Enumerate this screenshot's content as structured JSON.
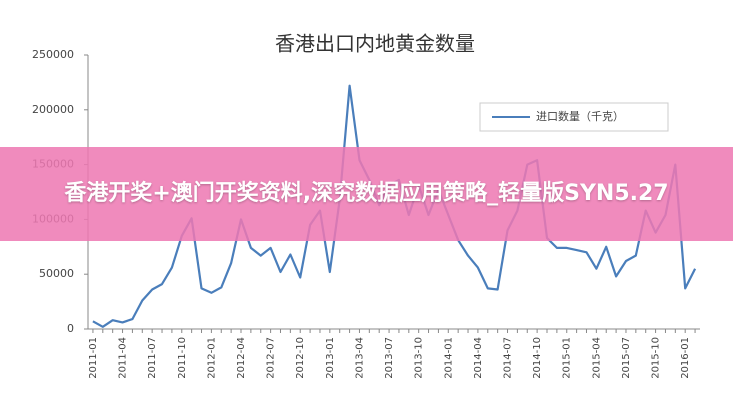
{
  "chart_data": {
    "type": "line",
    "title": "香港出口内地黄金数量",
    "categories": [
      "2011-01",
      null,
      null,
      "2011-04",
      null,
      null,
      "2011-07",
      null,
      null,
      "2011-10",
      null,
      null,
      "2012-01",
      null,
      null,
      "2012-04",
      null,
      null,
      "2012-07",
      null,
      null,
      "2012-10",
      null,
      null,
      "2013-01",
      null,
      null,
      "2013-04",
      null,
      null,
      "2013-07",
      null,
      null,
      "2013-10",
      null,
      null,
      "2014-01",
      null,
      null,
      "2014-04",
      null,
      null,
      "2014-07",
      null,
      null,
      "2014-10",
      null,
      null,
      "2015-01",
      null,
      null,
      "2015-04",
      null,
      null,
      "2015-07",
      null,
      null,
      "2015-10",
      null,
      null,
      "2016-01",
      null
    ],
    "series": [
      {
        "name": "进口数量（千克）",
        "color": "#4a7ebb",
        "values": [
          7000,
          2000,
          8000,
          6000,
          9000,
          26000,
          36000,
          41000,
          56000,
          85000,
          101000,
          37000,
          33000,
          38000,
          60000,
          100000,
          74000,
          67000,
          74000,
          52000,
          68000,
          47000,
          95000,
          108000,
          52000,
          118000,
          222000,
          154000,
          136000,
          113000,
          131000,
          136000,
          104000,
          131000,
          104000,
          127000,
          104000,
          81000,
          67000,
          56000,
          37000,
          36000,
          90000,
          108000,
          150000,
          154000,
          83000,
          74000,
          74000,
          72000,
          70000,
          55000,
          75000,
          48000,
          62000,
          67000,
          108000,
          88000,
          104000,
          150000,
          37000,
          55000
        ]
      }
    ],
    "ylim": [
      0,
      250000
    ],
    "yticks": [
      0,
      50000,
      100000,
      150000,
      200000,
      250000
    ],
    "legend": "top-right",
    "overlay_text": "香港开奖+澳门开奖资料,深究数据应用策略_轻量版SYN5.27"
  }
}
